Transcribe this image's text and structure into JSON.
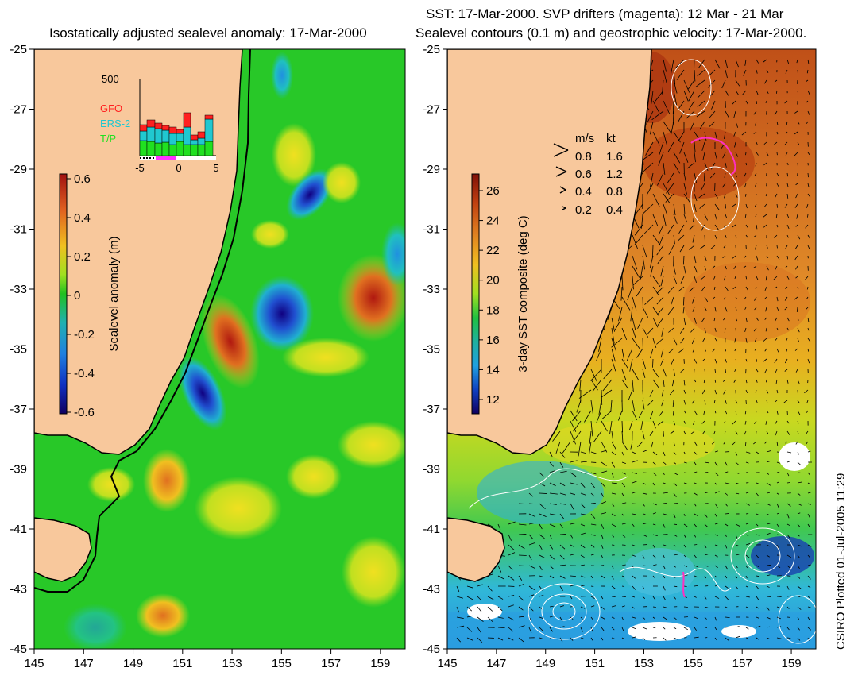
{
  "left_panel": {
    "title": "Isostatically adjusted sealevel anomaly: 17-Mar-2000",
    "y_ticks": [
      "-25",
      "-27",
      "-29",
      "-31",
      "-33",
      "-35",
      "-37",
      "-39",
      "-41",
      "-43",
      "-45"
    ],
    "x_ticks": [
      "145",
      "147",
      "149",
      "151",
      "153",
      "155",
      "157",
      "159"
    ],
    "colorbar": {
      "label": "Sealevel anomaly (m)",
      "ticks": [
        "0.6",
        "0.4",
        "0.2",
        "0",
        "-0.2",
        "-0.4",
        "-0.6"
      ]
    },
    "inset": {
      "y_max_label": "500",
      "x_ticks": [
        "-5",
        "0",
        "5"
      ],
      "legend": [
        {
          "name": "GFO",
          "color": "#ff2020"
        },
        {
          "name": "ERS-2",
          "color": "#20c8d0"
        },
        {
          "name": "T/P",
          "color": "#20e020"
        }
      ]
    }
  },
  "right_panel": {
    "title_line1": "SST: 17-Mar-2000. SVP drifters (magenta): 12 Mar - 21 Mar",
    "title_line2": "Sealevel contours (0.1 m) and geostrophic velocity: 17-Mar-2000.",
    "y_ticks": [
      "-25",
      "-27",
      "-29",
      "-31",
      "-33",
      "-35",
      "-37",
      "-39",
      "-41",
      "-43",
      "-45"
    ],
    "x_ticks": [
      "145",
      "147",
      "149",
      "151",
      "153",
      "155",
      "157",
      "159"
    ],
    "colorbar": {
      "label": "3-day SST composite (deg C)",
      "ticks": [
        "26",
        "24",
        "22",
        "20",
        "18",
        "16",
        "14",
        "12"
      ]
    },
    "velocity_key": {
      "header_ms": "m/s",
      "header_kt": "kt",
      "rows": [
        {
          "ms": "0.8",
          "kt": "1.6"
        },
        {
          "ms": "0.6",
          "kt": "1.2"
        },
        {
          "ms": "0.4",
          "kt": "0.8"
        },
        {
          "ms": "0.2",
          "kt": "0.4"
        }
      ]
    }
  },
  "credit": "CSIRO Plotted 01-Jul-2005 11:29",
  "colors": {
    "land": "#f8c89c",
    "sla_background": "#28c828",
    "sst_warm": "#d07020",
    "sst_cool": "#30c0e8"
  }
}
